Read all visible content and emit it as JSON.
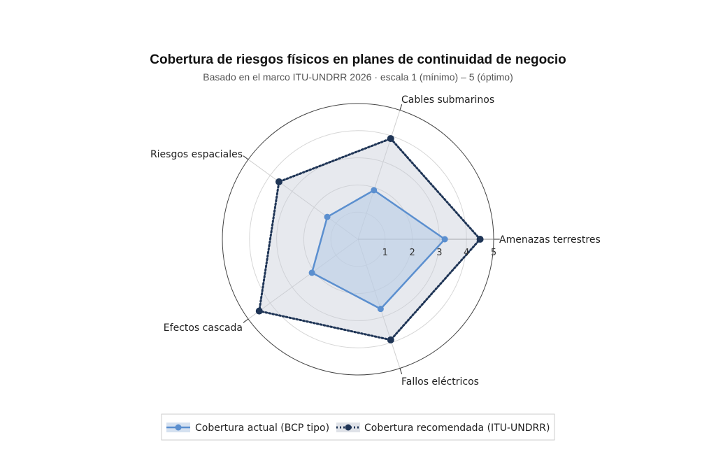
{
  "chart_data": {
    "type": "radar",
    "title": "Cobertura de riesgos físicos en planes de continuidad de negocio",
    "subtitle": "Basado en el marco ITU-UNDRR 2026 · escala 1 (mínimo) – 5 (óptimo)",
    "categories": [
      "Amenazas terrestres",
      "Cables submarinos",
      "Riesgos espaciales",
      "Efectos cascada",
      "Fallos eléctricos"
    ],
    "radial_range": [
      0,
      5
    ],
    "radial_ticks": [
      "1",
      "2",
      "3",
      "4",
      "5"
    ],
    "series": [
      {
        "name": "Cobertura actual (BCP tipo)",
        "values": [
          3.2,
          1.9,
          1.4,
          2.1,
          2.7
        ],
        "color": "#5b8fcf",
        "fill": "#b9cde6",
        "line": "solid"
      },
      {
        "name": "Cobertura recomendada (ITU-UNDRR)",
        "values": [
          4.5,
          3.9,
          3.6,
          4.5,
          3.9
        ],
        "color": "#1f3556",
        "fill": "#c9cfd9",
        "line": "dotted"
      }
    ],
    "grid": true,
    "legend_position": "bottom"
  }
}
